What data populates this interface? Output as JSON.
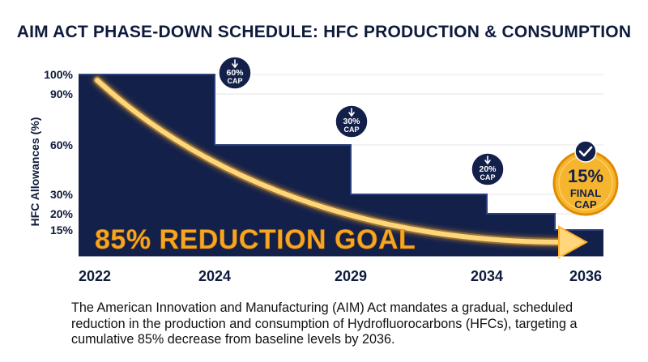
{
  "chart_data": {
    "type": "area",
    "title": "AIM ACT PHASE-DOWN SCHEDULE: HFC PRODUCTION & CONSUMPTION",
    "ylabel": "HFC Allowances (%)",
    "xlabel": "",
    "x_ticks": [
      "2022",
      "2024",
      "2029",
      "2034",
      "2036"
    ],
    "y_ticks": [
      "100%",
      "90%",
      "60%",
      "30%",
      "20%",
      "15%"
    ],
    "y_tick_values": [
      100,
      90,
      60,
      30,
      20,
      15
    ],
    "steps": [
      {
        "from": 2022,
        "to": 2024,
        "value": 100
      },
      {
        "from": 2024,
        "to": 2029,
        "value": 60
      },
      {
        "from": 2029,
        "to": 2034,
        "value": 30
      },
      {
        "from": 2034,
        "to": 2036,
        "value": 20
      },
      {
        "from": 2036,
        "to": 2036.5,
        "value": 15
      }
    ],
    "ylim": [
      0,
      100
    ],
    "grid": true,
    "step_badges": [
      {
        "line1": "60%",
        "line2": "CAP"
      },
      {
        "line1": "30%",
        "line2": "CAP"
      },
      {
        "line1": "20%",
        "line2": "CAP"
      }
    ],
    "final_badge": {
      "line1": "15%",
      "line2": "FINAL",
      "line3": "CAP"
    },
    "annotation": "85% REDUCTION GOAL",
    "colors": {
      "area": "#13204a",
      "accent": "#f5a623",
      "grid": "#e6e6e6",
      "badge": "#13204a"
    }
  },
  "caption": "The American Innovation and Manufacturing (AIM) Act mandates a gradual, scheduled reduction in the production and consumption of Hydrofluorocarbons (HFCs), targeting a cumulative 85% decrease from baseline levels by 2036."
}
